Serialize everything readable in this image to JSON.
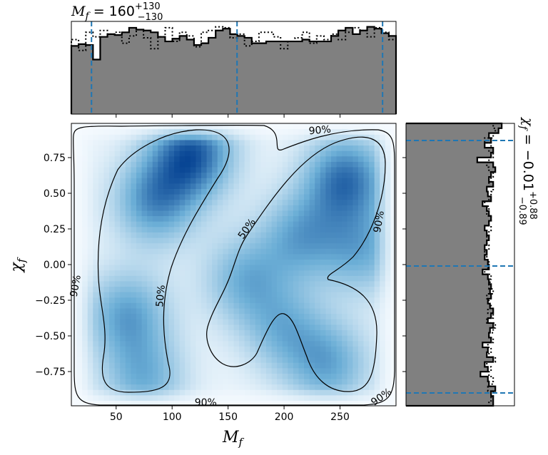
{
  "colors": {
    "hist_fill": "#808080",
    "hist_edge": "#000000",
    "quantile_line": "#1f77b4",
    "density_low": "#f7fbff",
    "density_high": "#08306b",
    "contour": "#000000"
  },
  "top_title": {
    "prefix": "M",
    "subscript": "f",
    "value": " = 160",
    "upper": "+130",
    "lower": "−130"
  },
  "right_title": {
    "prefix": "χ",
    "subscript": "f",
    "value": " = −0.01",
    "upper": "+0.88",
    "lower": "−0.89"
  },
  "chart_data": [
    {
      "type": "heatmap",
      "name": "joint-posterior",
      "xlabel": "M_f",
      "ylabel": "χ_f",
      "xlim": [
        10,
        300
      ],
      "ylim": [
        -0.99,
        0.99
      ],
      "xticks": [
        50,
        100,
        150,
        200,
        250
      ],
      "yticks": [
        -0.75,
        -0.5,
        -0.25,
        0.0,
        0.25,
        0.5,
        0.75
      ],
      "xtick_labels": [
        "50",
        "100",
        "150",
        "200",
        "250"
      ],
      "ytick_labels": [
        "−0.75",
        "−0.50",
        "−0.25",
        "0.00",
        "0.25",
        "0.50",
        "0.75"
      ],
      "density_peaks": [
        {
          "x": 118,
          "y": 0.78,
          "weight": 1.0
        },
        {
          "x": 85,
          "y": 0.45,
          "weight": 0.75
        },
        {
          "x": 255,
          "y": 0.6,
          "weight": 0.9
        },
        {
          "x": 215,
          "y": 0.2,
          "weight": 0.6
        },
        {
          "x": 60,
          "y": -0.35,
          "weight": 0.65
        },
        {
          "x": 75,
          "y": -0.8,
          "weight": 0.55
        },
        {
          "x": 165,
          "y": -0.1,
          "weight": 0.55
        },
        {
          "x": 240,
          "y": -0.7,
          "weight": 0.6
        },
        {
          "x": 200,
          "y": -0.45,
          "weight": 0.5
        },
        {
          "x": 270,
          "y": 0.1,
          "weight": 0.55
        }
      ],
      "contour_labels": [
        {
          "text": "90%",
          "x": 232,
          "y": 0.94,
          "angle": -5
        },
        {
          "text": "90%",
          "x": 285,
          "y": 0.3,
          "angle": -80
        },
        {
          "text": "90%",
          "x": 14,
          "y": -0.15,
          "angle": -80
        },
        {
          "text": "90%",
          "x": 130,
          "y": -0.97,
          "angle": 0
        },
        {
          "text": "90%",
          "x": 287,
          "y": -0.93,
          "angle": -35
        },
        {
          "text": "50%",
          "x": 167,
          "y": 0.25,
          "angle": -55
        },
        {
          "text": "50%",
          "x": 90,
          "y": -0.22,
          "angle": -85
        }
      ]
    },
    {
      "type": "bar",
      "name": "M_f-marginal",
      "bins": {
        "start": 10,
        "end": 300,
        "count": 45
      },
      "values": [
        0.75,
        0.77,
        0.76,
        0.6,
        0.85,
        0.88,
        0.87,
        0.9,
        0.95,
        0.93,
        0.92,
        0.9,
        0.85,
        0.8,
        0.83,
        0.86,
        0.82,
        0.76,
        0.78,
        0.84,
        0.92,
        0.94,
        0.88,
        0.86,
        0.84,
        0.78,
        0.78,
        0.8,
        0.8,
        0.8,
        0.8,
        0.8,
        0.82,
        0.8,
        0.8,
        0.8,
        0.86,
        0.92,
        0.95,
        0.88,
        0.92,
        0.96,
        0.94,
        0.89,
        0.86
      ],
      "prior_values": [
        0.82,
        0.7,
        0.9,
        0.85,
        0.92,
        0.88,
        0.9,
        0.78,
        0.86,
        0.93,
        0.84,
        0.72,
        0.85,
        0.95,
        0.8,
        0.9,
        0.86,
        0.74,
        0.9,
        0.92,
        0.96,
        0.95,
        0.84,
        0.88,
        0.75,
        0.8,
        0.9,
        0.9,
        0.85,
        0.72,
        0.8,
        0.84,
        0.9,
        0.78,
        0.86,
        0.82,
        0.88,
        0.82,
        0.9,
        0.95,
        0.92,
        0.85,
        0.95,
        0.9,
        0.82
      ],
      "quantiles": [
        28,
        158,
        288
      ],
      "ylim": [
        0,
        1.02
      ]
    },
    {
      "type": "bar",
      "name": "chi_f-marginal",
      "orientation": "horizontal",
      "bins": {
        "start": -0.99,
        "end": 0.99,
        "count": 58
      },
      "values": [
        0.2,
        0.2,
        0.22,
        0.18,
        0.24,
        0.25,
        0.32,
        0.25,
        0.28,
        0.2,
        0.26,
        0.25,
        0.3,
        0.22,
        0.24,
        0.23,
        0.2,
        0.25,
        0.22,
        0.2,
        0.23,
        0.25,
        0.22,
        0.23,
        0.22,
        0.24,
        0.25,
        0.3,
        0.24,
        0.25,
        0.28,
        0.26,
        0.28,
        0.26,
        0.24,
        0.26,
        0.28,
        0.24,
        0.22,
        0.24,
        0.26,
        0.3,
        0.22,
        0.25,
        0.26,
        0.2,
        0.24,
        0.22,
        0.18,
        0.2,
        0.35,
        0.22,
        0.2,
        0.28,
        0.22,
        0.24,
        0.15,
        0.12
      ],
      "prior_values": [
        0.24,
        0.22,
        0.2,
        0.25,
        0.21,
        0.2,
        0.24,
        0.22,
        0.26,
        0.18,
        0.24,
        0.22,
        0.25,
        0.2,
        0.24,
        0.2,
        0.18,
        0.26,
        0.2,
        0.25,
        0.22,
        0.24,
        0.26,
        0.2,
        0.24,
        0.23,
        0.22,
        0.28,
        0.25,
        0.24,
        0.26,
        0.28,
        0.24,
        0.26,
        0.26,
        0.24,
        0.22,
        0.24,
        0.22,
        0.26,
        0.24,
        0.28,
        0.24,
        0.22,
        0.2,
        0.24,
        0.22,
        0.2,
        0.24,
        0.26,
        0.24,
        0.2,
        0.24,
        0.22,
        0.28,
        0.2,
        0.18,
        0.2
      ],
      "quantiles": [
        -0.9,
        -0.01,
        0.87
      ],
      "xlim": [
        0,
        1.02
      ]
    }
  ]
}
